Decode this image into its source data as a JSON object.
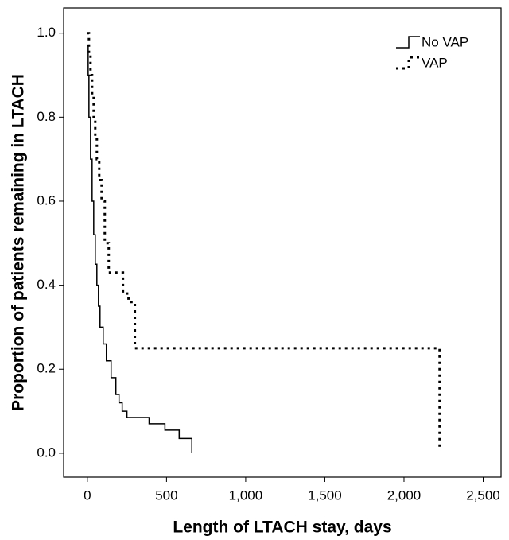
{
  "chart_data": {
    "type": "line",
    "drawstyle": "steps-post",
    "xlabel": "Length of LTACH stay, days",
    "ylabel": "Proportion of patients remaining in LTACH",
    "xlim": [
      -150,
      2613
    ],
    "ylim": [
      -0.057,
      1.06
    ],
    "xticks": [
      0,
      500,
      {
        "value": 1000,
        "label": "1,000"
      },
      {
        "value": 1500,
        "label": "1,500"
      },
      {
        "value": 2000,
        "label": "2,000"
      },
      {
        "value": 2500,
        "label": "2,500"
      }
    ],
    "yticks": [
      {
        "value": 0,
        "label": "0.0"
      },
      0.2,
      0.4,
      0.6,
      0.8,
      {
        "value": 1,
        "label": "1.0"
      }
    ],
    "legend": "upper right",
    "series": [
      {
        "name": "No VAP",
        "color": "#000000",
        "dash": "solid",
        "x": [
          0,
          5,
          10,
          20,
          30,
          40,
          50,
          60,
          70,
          80,
          100,
          120,
          150,
          180,
          200,
          220,
          250,
          390,
          490,
          580,
          660
        ],
        "values": [
          0.97,
          0.9,
          0.8,
          0.7,
          0.6,
          0.52,
          0.45,
          0.4,
          0.35,
          0.3,
          0.26,
          0.22,
          0.18,
          0.14,
          0.12,
          0.1,
          0.085,
          0.07,
          0.055,
          0.035,
          0.0
        ]
      },
      {
        "name": "VAP",
        "color": "#000000",
        "dash": "dotted",
        "x": [
          0,
          10,
          20,
          30,
          40,
          50,
          60,
          75,
          90,
          110,
          135,
          225,
          260,
          300,
          2225
        ],
        "values": [
          1.0,
          0.95,
          0.9,
          0.85,
          0.8,
          0.75,
          0.7,
          0.65,
          0.6,
          0.5,
          0.43,
          0.38,
          0.36,
          0.25,
          0.01
        ]
      }
    ]
  }
}
